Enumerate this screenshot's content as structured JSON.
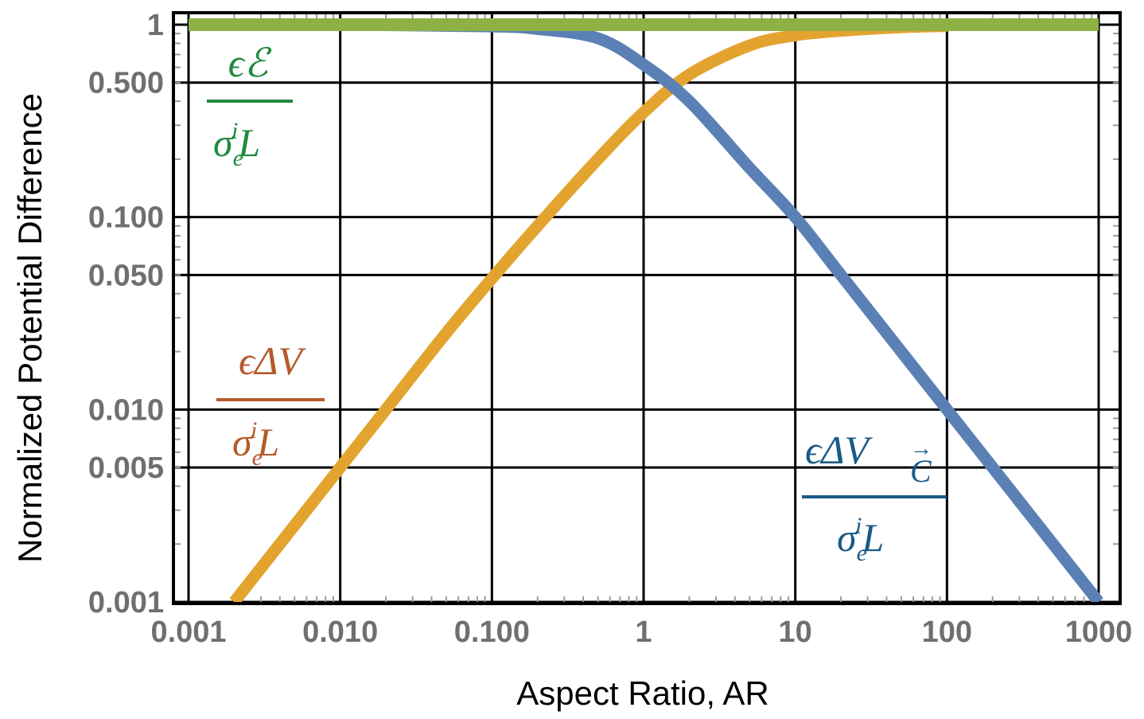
{
  "chart_data": {
    "type": "line",
    "scale": {
      "x": "log",
      "y": "log"
    },
    "xlabel": "Aspect Ratio, AR",
    "ylabel": "Normalized Potential Difference",
    "xlim": [
      0.001,
      1000
    ],
    "ylim": [
      0.001,
      1
    ],
    "grid": true,
    "x_ticks": [
      {
        "value": 0.001,
        "label": "0.001"
      },
      {
        "value": 0.01,
        "label": "0.010"
      },
      {
        "value": 0.1,
        "label": "0.100"
      },
      {
        "value": 1,
        "label": "1"
      },
      {
        "value": 10,
        "label": "10"
      },
      {
        "value": 100,
        "label": "100"
      },
      {
        "value": 1000,
        "label": "1000"
      }
    ],
    "y_ticks": [
      {
        "value": 0.001,
        "label": "0.001"
      },
      {
        "value": 0.005,
        "label": "0.005"
      },
      {
        "value": 0.01,
        "label": "0.010"
      },
      {
        "value": 0.05,
        "label": "0.050"
      },
      {
        "value": 0.1,
        "label": "0.100"
      },
      {
        "value": 0.5,
        "label": "0.500"
      },
      {
        "value": 1,
        "label": "1"
      }
    ],
    "series": [
      {
        "name": "EMF",
        "color": "#8db145",
        "x": [
          0.001,
          0.01,
          0.1,
          1,
          10,
          100,
          1000
        ],
        "y": [
          1,
          1,
          1,
          1,
          1,
          1,
          1
        ]
      },
      {
        "name": "Delta V",
        "color": "#e3a42f",
        "x": [
          0.002,
          0.003,
          0.005,
          0.01,
          0.02,
          0.05,
          0.1,
          0.2,
          0.5,
          1,
          2,
          5,
          10,
          20,
          50,
          100
        ],
        "y": [
          0.001,
          0.0015,
          0.0025,
          0.005,
          0.01,
          0.025,
          0.048,
          0.09,
          0.2,
          0.35,
          0.55,
          0.78,
          0.88,
          0.93,
          0.97,
          0.985
        ]
      },
      {
        "name": "Delta V C",
        "color": "#5b80b5",
        "x": [
          0.001,
          0.01,
          0.1,
          0.2,
          0.5,
          1,
          2,
          5,
          10,
          20,
          50,
          100,
          200,
          500,
          1000
        ],
        "y": [
          1,
          0.998,
          0.98,
          0.95,
          0.85,
          0.62,
          0.4,
          0.18,
          0.1,
          0.05,
          0.02,
          0.01,
          0.005,
          0.002,
          0.001
        ]
      }
    ],
    "annotations": [
      {
        "name": "emf-label",
        "color": "#1e8a3e",
        "numerator": "ϵℰ",
        "denominator_base": "σ",
        "sub": "e",
        "sup": "i",
        "denominator_tail": "L"
      },
      {
        "name": "delta-v-label",
        "color": "#b55a2a",
        "numerator": "ϵΔV",
        "denominator_base": "σ",
        "sub": "e",
        "sup": "i",
        "denominator_tail": "L"
      },
      {
        "name": "delta-v-c-label",
        "color": "#1a5a87",
        "numerator": "ϵΔV",
        "numerator_sub": "C",
        "numerator_sub_arrow": "→",
        "denominator_base": "σ",
        "sub": "e",
        "sup": "i",
        "denominator_tail": "L"
      }
    ]
  }
}
